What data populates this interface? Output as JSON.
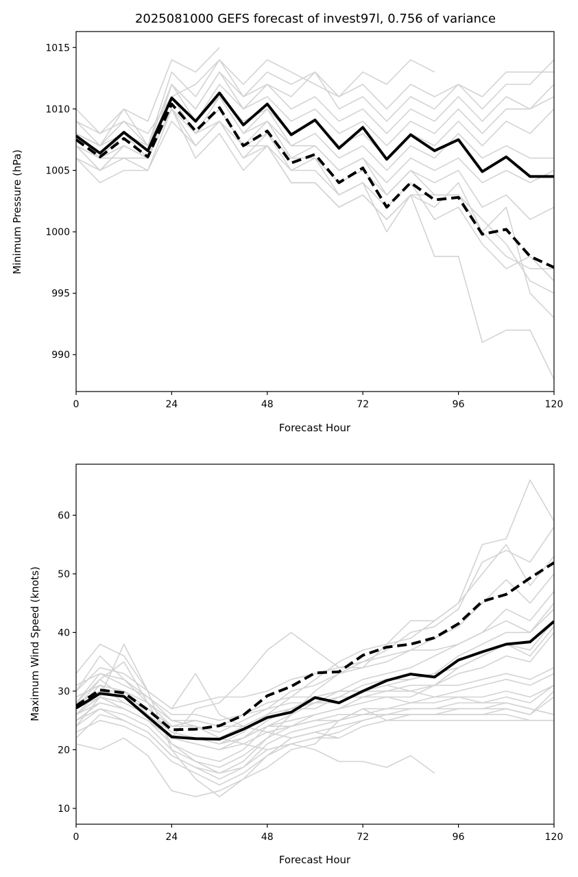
{
  "chart_data": [
    {
      "type": "line",
      "title": "2025081000 GEFS forecast of invest97l, 0.756 of variance",
      "xlabel": "Forecast Hour",
      "ylabel": "Minimum Pressure (hPa)",
      "xlim": [
        0,
        120
      ],
      "ylim": [
        987,
        1016.3
      ],
      "xticks": [
        0,
        24,
        48,
        72,
        96,
        120
      ],
      "yticks": [
        990,
        995,
        1000,
        1005,
        1010,
        1015
      ],
      "grid": false,
      "colors": {
        "members": "#d3d3d3",
        "highlight": "#000000"
      },
      "x": [
        0,
        6,
        12,
        18,
        24,
        30,
        36,
        42,
        48,
        54,
        60,
        66,
        72,
        78,
        84,
        90,
        96,
        102,
        108,
        114,
        120
      ],
      "members": [
        [
          1009,
          1008,
          1010,
          1009,
          1014,
          1013,
          1015
        ],
        [
          1008,
          1006,
          1008,
          1007,
          1013,
          1011,
          1014,
          1012,
          1014,
          1013,
          1012,
          1011,
          1013,
          1012,
          1014,
          1013
        ],
        [
          1007,
          1005,
          1007,
          1006,
          1012,
          1010,
          1013,
          1010,
          1012,
          1011,
          1013,
          1010,
          1011,
          1009,
          1011,
          1010,
          1012,
          1011,
          1013,
          1013,
          1013
        ],
        [
          1010,
          1008,
          1009,
          1008,
          1011,
          1012,
          1014,
          1011,
          1013,
          1012,
          1013,
          1011,
          1012,
          1010,
          1012,
          1011,
          1012,
          1010,
          1012,
          1012,
          1014
        ],
        [
          1008,
          1007,
          1010,
          1007,
          1012,
          1010,
          1013,
          1011,
          1012,
          1010,
          1011,
          1009,
          1010,
          1008,
          1010,
          1009,
          1011,
          1009,
          1011,
          1010,
          1012
        ],
        [
          1007,
          1006,
          1008,
          1006,
          1011,
          1009,
          1012,
          1010,
          1011,
          1009,
          1010,
          1008,
          1009,
          1007,
          1009,
          1008,
          1010,
          1008,
          1010,
          1010,
          1011
        ],
        [
          1006,
          1005,
          1007,
          1006,
          1010,
          1008,
          1011,
          1009,
          1010,
          1008,
          1009,
          1007,
          1008,
          1006,
          1008,
          1007,
          1009,
          1007,
          1009,
          1008,
          1010
        ],
        [
          1008,
          1007,
          1009,
          1007,
          1011,
          1009,
          1011,
          1008,
          1010,
          1007,
          1008,
          1006,
          1007,
          1005,
          1007,
          1006,
          1008,
          1006,
          1007,
          1006,
          1006
        ],
        [
          1007,
          1006,
          1007,
          1006,
          1010,
          1008,
          1010,
          1007,
          1009,
          1006,
          1007,
          1005,
          1006,
          1004,
          1006,
          1005,
          1006,
          1004,
          1005,
          1004,
          1005
        ],
        [
          1006,
          1004,
          1005,
          1005,
          1009,
          1007,
          1009,
          1006,
          1008,
          1005,
          1006,
          1004,
          1005,
          1003,
          1005,
          1004,
          1005,
          1002,
          1003,
          1001,
          1002
        ],
        [
          1007,
          1006,
          1006,
          1005,
          1010,
          1006,
          1008,
          1005,
          1007,
          1004,
          1004,
          1002,
          1003,
          1001,
          1003,
          1003,
          1003,
          1001,
          999,
          996,
          995
        ],
        [
          1008,
          1006,
          1007,
          1006,
          1011,
          1008,
          1009,
          1006,
          1007,
          1005,
          1005,
          1003,
          1004,
          1000,
          1003,
          1002,
          1004,
          1000,
          1002,
          995,
          993
        ],
        [
          1007,
          1005,
          1006,
          1006,
          1010,
          1007,
          1009,
          1007,
          1007,
          1004,
          1004,
          1002,
          1003,
          1001,
          1003,
          998,
          998,
          991,
          992,
          992,
          988
        ],
        [
          1008,
          1007,
          1008,
          1006,
          1011,
          1008,
          1010,
          1007,
          1008,
          1006,
          1006,
          1003,
          1004,
          1002,
          1004,
          1001,
          1002,
          999,
          997,
          998,
          996
        ],
        [
          1009,
          1007,
          1009,
          1007,
          1012,
          1009,
          1011,
          1008,
          1009,
          1007,
          1007,
          1005,
          1006,
          1003,
          1005,
          1003,
          1003,
          1000,
          998,
          997,
          997
        ]
      ],
      "series": [
        {
          "style": "solid",
          "values": [
            1007.8,
            1006.4,
            1008.1,
            1006.6,
            1010.9,
            1009.0,
            1011.3,
            1008.7,
            1010.4,
            1007.9,
            1009.1,
            1006.8,
            1008.5,
            1005.9,
            1007.9,
            1006.6,
            1007.5,
            1004.9,
            1006.1,
            1004.5,
            1004.5
          ]
        },
        {
          "style": "dashed",
          "values": [
            1007.5,
            1006.1,
            1007.6,
            1006.1,
            1010.4,
            1008.2,
            1010.1,
            1007.0,
            1008.2,
            1005.6,
            1006.3,
            1004.0,
            1005.2,
            1002.0,
            1004.0,
            1002.6,
            1002.8,
            999.8,
            1000.2,
            998.0,
            997.1
          ]
        }
      ]
    },
    {
      "type": "line",
      "xlabel": "Forecast Hour",
      "ylabel": "Maximum Wind Speed (knots)",
      "xlim": [
        0,
        120
      ],
      "ylim": [
        7.3,
        68.7
      ],
      "xticks": [
        0,
        24,
        48,
        72,
        96,
        120
      ],
      "yticks": [
        10,
        20,
        30,
        40,
        50,
        60
      ],
      "grid": false,
      "colors": {
        "members": "#d3d3d3",
        "highlight": "#000000"
      },
      "x": [
        0,
        6,
        12,
        18,
        24,
        30,
        36,
        42,
        48,
        54,
        60,
        66,
        72,
        78,
        84,
        90,
        96,
        102,
        108,
        114,
        120
      ],
      "members": [
        [
          33,
          38,
          36,
          30,
          27,
          33,
          26,
          24,
          23,
          22,
          23,
          22
        ],
        [
          30,
          36,
          32,
          28,
          24,
          24,
          22,
          21,
          20,
          21,
          20,
          18,
          18,
          17,
          19,
          16
        ],
        [
          24,
          29,
          38,
          30,
          20,
          15,
          12,
          15,
          17,
          20,
          21,
          25,
          27,
          25,
          25,
          25,
          25,
          25,
          25,
          25,
          25
        ],
        [
          29,
          31,
          30,
          26,
          22,
          27,
          28,
          32,
          37,
          40,
          37,
          34,
          34,
          38,
          42,
          42,
          45,
          55,
          56,
          66,
          59
        ],
        [
          27,
          32,
          35,
          28,
          21,
          18,
          16,
          18,
          22,
          26,
          30,
          33,
          35,
          37,
          40,
          41,
          44,
          52,
          54,
          52,
          58
        ],
        [
          26,
          30,
          29,
          27,
          23,
          22,
          21,
          23,
          26,
          29,
          32,
          35,
          37,
          38,
          39,
          42,
          45,
          50,
          55,
          48,
          53
        ],
        [
          28,
          33,
          31,
          29,
          25,
          24,
          23,
          25,
          27,
          30,
          31,
          33,
          34,
          35,
          37,
          39,
          41,
          45,
          49,
          45,
          50
        ],
        [
          25,
          28,
          27,
          25,
          22,
          21,
          20,
          22,
          24,
          26,
          28,
          30,
          32,
          33,
          34,
          36,
          38,
          40,
          44,
          42,
          47
        ],
        [
          27,
          31,
          28,
          26,
          23,
          22,
          21,
          22,
          25,
          27,
          27,
          29,
          31,
          32,
          32,
          33,
          36,
          38,
          40,
          40,
          45
        ],
        [
          26,
          29,
          27,
          25,
          21,
          19,
          18,
          20,
          24,
          25,
          26,
          27,
          29,
          30,
          31,
          31,
          34,
          36,
          38,
          36,
          41
        ],
        [
          24,
          27,
          26,
          24,
          20,
          18,
          17,
          19,
          22,
          24,
          26,
          27,
          28,
          29,
          29,
          31,
          33,
          34,
          36,
          35,
          40
        ],
        [
          28,
          30,
          30,
          27,
          24,
          24,
          22,
          24,
          26,
          27,
          29,
          30,
          30,
          31,
          30,
          31,
          31,
          32,
          33,
          32,
          34
        ],
        [
          25,
          27,
          25,
          23,
          19,
          17,
          15,
          17,
          21,
          23,
          24,
          25,
          27,
          27,
          28,
          29,
          30,
          31,
          32,
          31,
          33
        ],
        [
          29,
          31,
          30,
          28,
          25,
          25,
          24,
          26,
          27,
          28,
          28,
          29,
          29,
          29,
          28,
          28,
          29,
          29,
          30,
          29,
          31
        ],
        [
          23,
          25,
          24,
          22,
          18,
          16,
          14,
          16,
          19,
          22,
          23,
          24,
          25,
          26,
          27,
          27,
          28,
          28,
          29,
          28,
          31
        ],
        [
          27,
          29,
          28,
          26,
          22,
          21,
          20,
          21,
          23,
          24,
          25,
          26,
          26,
          27,
          27,
          27,
          27,
          27,
          28,
          27,
          26
        ],
        [
          31,
          33,
          32,
          29,
          26,
          26,
          25,
          26,
          28,
          29,
          29,
          30,
          30,
          30,
          30,
          29,
          29,
          28,
          28,
          27,
          26
        ],
        [
          21,
          20,
          22,
          19,
          13,
          12,
          13,
          15,
          19,
          21,
          22,
          23,
          25,
          26,
          26,
          26,
          26,
          26,
          26,
          25,
          25
        ],
        [
          26,
          28,
          27,
          25,
          22,
          22,
          21,
          22,
          24,
          24,
          25,
          25,
          26,
          26,
          26,
          26,
          26,
          26,
          27,
          26,
          29
        ],
        [
          30,
          34,
          33,
          30,
          27,
          28,
          29,
          29,
          30,
          32,
          33,
          34,
          35,
          36,
          37,
          37,
          38,
          40,
          42,
          40,
          44
        ],
        [
          22,
          26,
          25,
          23,
          19,
          17,
          16,
          17,
          20,
          21,
          22,
          22,
          24,
          25,
          26,
          26,
          27,
          27,
          27,
          26,
          30
        ],
        [
          28,
          32,
          29,
          27,
          24,
          25,
          24,
          24,
          26,
          27,
          28,
          28,
          30,
          31,
          32,
          33,
          34,
          36,
          38,
          37,
          42
        ]
      ],
      "series": [
        {
          "style": "solid",
          "values": [
            27.1,
            29.6,
            29.1,
            25.6,
            22.2,
            21.9,
            21.8,
            23.5,
            25.5,
            26.4,
            28.9,
            28.0,
            30.0,
            31.8,
            32.9,
            32.4,
            35.3,
            36.7,
            38.0,
            38.4,
            41.9
          ]
        },
        {
          "style": "dashed",
          "values": [
            27.5,
            30.2,
            29.7,
            26.8,
            23.4,
            23.5,
            24.1,
            25.9,
            29.2,
            30.8,
            33.1,
            33.3,
            36.1,
            37.5,
            38.0,
            39.1,
            41.5,
            45.3,
            46.5,
            49.3,
            51.9
          ]
        }
      ]
    }
  ]
}
